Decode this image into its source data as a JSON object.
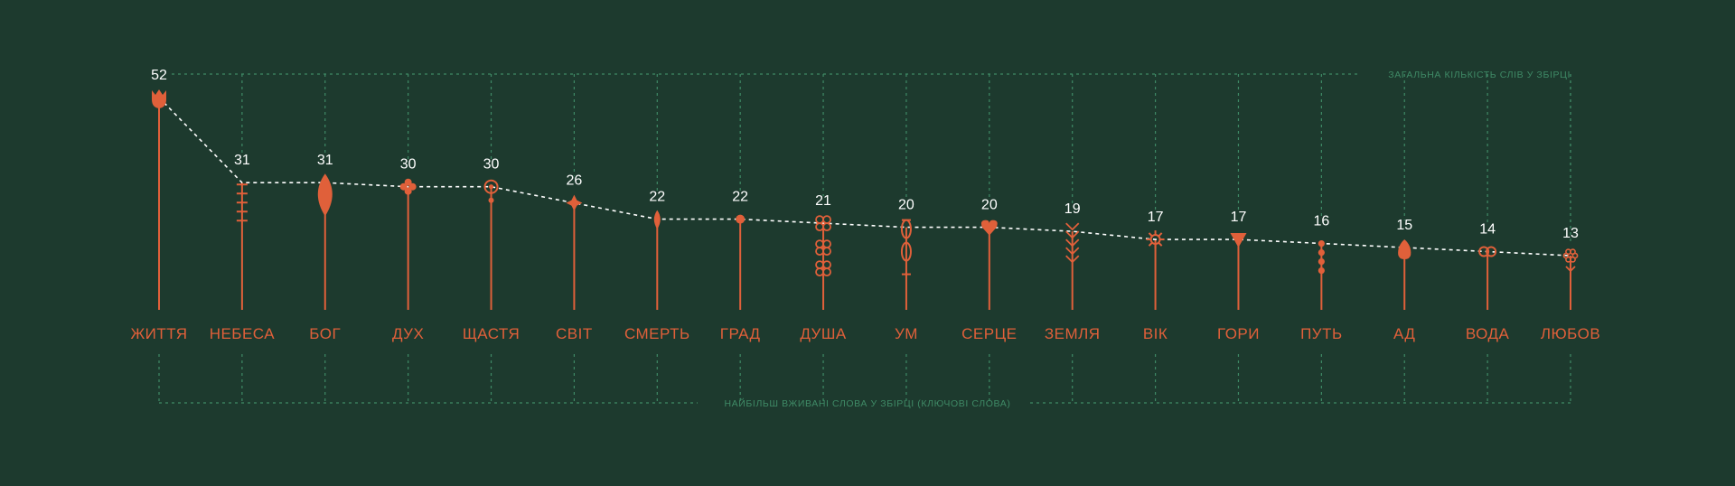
{
  "chart_data": {
    "type": "line",
    "top_caption": "ЗАГАЛЬНА КІЛЬКІСТЬ СЛІВ  У ЗБІРЦІ",
    "bottom_caption": "НАЙБІЛЬШ ВЖИВАНІ СЛОВА У ЗБІРЦІ (КЛЮЧОВІ СЛОВА)",
    "categories": [
      "ЖИТТЯ",
      "НЕБЕСА",
      "БОГ",
      "ДУХ",
      "ЩАСТЯ",
      "СВІТ",
      "СМЕРТЬ",
      "ГРАД",
      "ДУША",
      "УМ",
      "СЕРЦЕ",
      "ЗЕМЛЯ",
      "ВІК",
      "ГОРИ",
      "ПУТЬ",
      "АД",
      "ВОДА",
      "ЛЮБОВ"
    ],
    "values": [
      52,
      31,
      31,
      30,
      30,
      26,
      22,
      22,
      21,
      20,
      20,
      19,
      17,
      17,
      16,
      15,
      14,
      13
    ],
    "markers": [
      "tulip",
      "ladder",
      "lens",
      "cross",
      "ring",
      "star",
      "drop",
      "dot",
      "knots",
      "chain",
      "heart",
      "wheat",
      "sun",
      "triangle",
      "beads",
      "bell",
      "loop",
      "flower"
    ],
    "colors": {
      "accent": "#e0603a",
      "line": "#ffffff",
      "guide": "#3f8a66",
      "background": "#1d3a2e"
    }
  }
}
